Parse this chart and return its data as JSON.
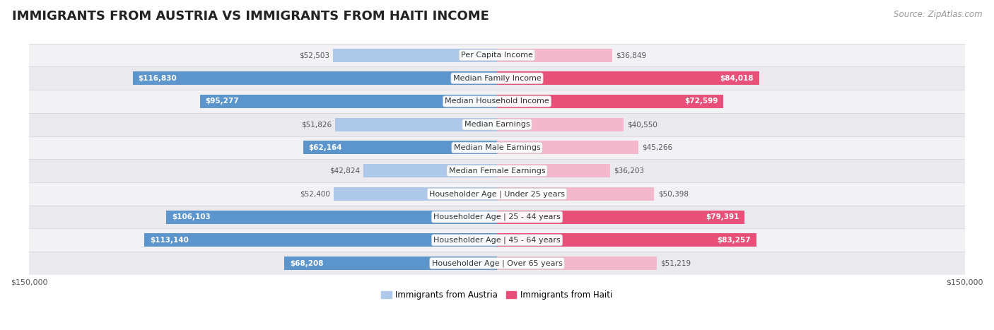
{
  "title": "IMMIGRANTS FROM AUSTRIA VS IMMIGRANTS FROM HAITI INCOME",
  "source": "Source: ZipAtlas.com",
  "categories": [
    "Per Capita Income",
    "Median Family Income",
    "Median Household Income",
    "Median Earnings",
    "Median Male Earnings",
    "Median Female Earnings",
    "Householder Age | Under 25 years",
    "Householder Age | 25 - 44 years",
    "Householder Age | 45 - 64 years",
    "Householder Age | Over 65 years"
  ],
  "austria_values": [
    52503,
    116830,
    95277,
    51826,
    62164,
    42824,
    52400,
    106103,
    113140,
    68208
  ],
  "haiti_values": [
    36849,
    84018,
    72599,
    40550,
    45266,
    36203,
    50398,
    79391,
    83257,
    51219
  ],
  "austria_color_light": "#adc8e8",
  "austria_color_dark": "#5b95cc",
  "haiti_color_light": "#f4b8cc",
  "haiti_color_dark": "#e8507a",
  "row_bg_color": "#efefef",
  "row_bg_alt": "#e8e8e8",
  "axis_limit": 150000,
  "bar_height": 0.58,
  "inside_threshold": 60000,
  "title_fontsize": 13,
  "source_fontsize": 8.5,
  "category_fontsize": 8,
  "value_fontsize": 7.5,
  "legend_fontsize": 8.5,
  "axis_label_fontsize": 8
}
